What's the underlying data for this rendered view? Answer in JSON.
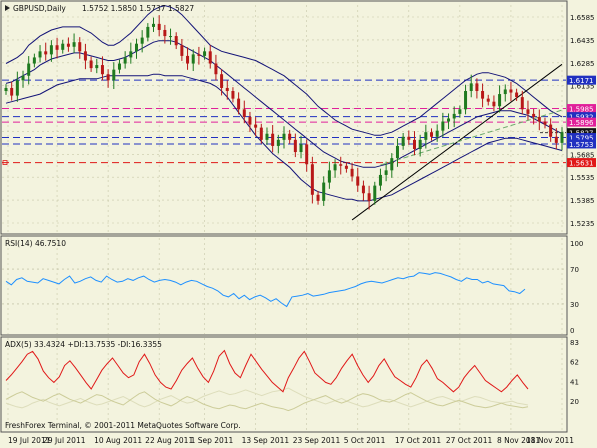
{
  "main_header": {
    "symbol": "GBPUSD,Daily",
    "ohlc": "1.5752 1.5850 1.5737 1.5827"
  },
  "rsi_header": "RSI(14) 46.7510",
  "adx_header": "ADX(5) 33.4324 +DI:13.7535 -DI:16.3355",
  "footer": "FreshForex Terminal, © 2001-2011 MetaQuotes Software Corp.",
  "colors": {
    "background": "#f3f3de",
    "bull_candle": "#1f7a1f",
    "bear_candle": "#b81818",
    "bollinger": "#141478",
    "blue_level": "#2030c0",
    "red_level": "#e01818",
    "magenta_level": "#e0209a",
    "trendline": "#000000",
    "rsi_line": "#1e90ff",
    "adx_line": "#e01818",
    "di_plus": "#cccc99",
    "di_minus": "#ddddbb"
  },
  "chart_data": [
    {
      "type": "candlestick",
      "title": "GBPUSD,Daily",
      "ylim": [
        1.5235,
        1.6585
      ],
      "y_ticks": [
        "1.6585",
        "1.6435",
        "1.6285",
        "1.6135",
        "1.5985",
        "1.5835",
        "1.5685",
        "1.5535",
        "1.5385",
        "1.5235"
      ],
      "x_labels": [
        "19 Jul 2011",
        "29 Jul 2011",
        "10 Aug 2011",
        "22 Aug 2011",
        "1 Sep 2011",
        "13 Sep 2011",
        "23 Sep 2011",
        "5 Oct 2011",
        "17 Oct 2011",
        "27 Oct 2011",
        "8 Nov 2011",
        "18 Nov 2011"
      ],
      "levels": [
        {
          "price": 1.6171,
          "label": "1.6171",
          "color": "blue"
        },
        {
          "price": 1.5985,
          "label": "1.5985",
          "color": "magenta"
        },
        {
          "price": 1.5932,
          "label": "1.5932",
          "color": "blue"
        },
        {
          "price": 1.5896,
          "label": "1.5896",
          "color": "magenta"
        },
        {
          "price": 1.5827,
          "label": "1.5827",
          "color": "black"
        },
        {
          "price": 1.5795,
          "label": "1.5795",
          "color": "blue"
        },
        {
          "price": 1.5753,
          "label": "1.5753",
          "color": "blue"
        },
        {
          "price": 1.5631,
          "label": "1.5631",
          "color": "red"
        }
      ],
      "close": [
        1.612,
        1.607,
        1.617,
        1.62,
        1.628,
        1.632,
        1.636,
        1.634,
        1.64,
        1.637,
        1.641,
        1.639,
        1.642,
        1.636,
        1.63,
        1.625,
        1.627,
        1.621,
        1.617,
        1.624,
        1.628,
        1.632,
        1.636,
        1.641,
        1.645,
        1.652,
        1.654,
        1.65,
        1.646,
        1.646,
        1.64,
        1.633,
        1.628,
        1.634,
        1.633,
        1.636,
        1.628,
        1.621,
        1.612,
        1.61,
        1.605,
        1.598,
        1.593,
        1.588,
        1.586,
        1.578,
        1.582,
        1.574,
        1.578,
        1.582,
        1.578,
        1.57,
        1.575,
        1.562,
        1.542,
        1.538,
        1.55,
        1.558,
        1.562,
        1.561,
        1.559,
        1.554,
        1.548,
        1.543,
        1.538,
        1.548,
        1.555,
        1.558,
        1.566,
        1.574,
        1.58,
        1.578,
        1.572,
        1.578,
        1.583,
        1.58,
        1.584,
        1.59,
        1.592,
        1.595,
        1.598,
        1.61,
        1.615,
        1.61,
        1.605,
        1.603,
        1.6,
        1.608,
        1.611,
        1.609,
        1.606,
        1.598,
        1.595,
        1.593,
        1.59,
        1.588,
        1.58,
        1.576,
        1.583
      ],
      "bollinger_upper": [
        1.628,
        1.63,
        1.632,
        1.635,
        1.64,
        1.643,
        1.646,
        1.648,
        1.65,
        1.651,
        1.652,
        1.652,
        1.652,
        1.652,
        1.65,
        1.648,
        1.645,
        1.642,
        1.64,
        1.64,
        1.642,
        1.645,
        1.648,
        1.652,
        1.656,
        1.66,
        1.663,
        1.665,
        1.666,
        1.665,
        1.663,
        1.66,
        1.656,
        1.652,
        1.648,
        1.644,
        1.64,
        1.638,
        1.636,
        1.635,
        1.634,
        1.633,
        1.632,
        1.631,
        1.63,
        1.628,
        1.626,
        1.624,
        1.622,
        1.62,
        1.617,
        1.614,
        1.611,
        1.608,
        1.604,
        1.6,
        1.597,
        1.594,
        1.591,
        1.589,
        1.587,
        1.585,
        1.584,
        1.583,
        1.582,
        1.581,
        1.581,
        1.582,
        1.583,
        1.585,
        1.587,
        1.589,
        1.591,
        1.593,
        1.596,
        1.599,
        1.602,
        1.605,
        1.608,
        1.611,
        1.614,
        1.617,
        1.619,
        1.621,
        1.622,
        1.622,
        1.621,
        1.62,
        1.619,
        1.617,
        1.615,
        1.612,
        1.609,
        1.606,
        1.603,
        1.6,
        1.597,
        1.595,
        1.593
      ],
      "bollinger_middle": [
        1.615,
        1.616,
        1.618,
        1.62,
        1.622,
        1.624,
        1.627,
        1.629,
        1.631,
        1.632,
        1.633,
        1.634,
        1.635,
        1.635,
        1.634,
        1.633,
        1.632,
        1.631,
        1.63,
        1.63,
        1.631,
        1.632,
        1.634,
        1.636,
        1.638,
        1.64,
        1.642,
        1.643,
        1.643,
        1.643,
        1.642,
        1.64,
        1.638,
        1.636,
        1.634,
        1.632,
        1.63,
        1.627,
        1.624,
        1.621,
        1.618,
        1.615,
        1.612,
        1.609,
        1.606,
        1.603,
        1.6,
        1.597,
        1.594,
        1.591,
        1.588,
        1.585,
        1.582,
        1.579,
        1.576,
        1.573,
        1.57,
        1.568,
        1.566,
        1.564,
        1.563,
        1.562,
        1.561,
        1.56,
        1.56,
        1.56,
        1.561,
        1.562,
        1.563,
        1.565,
        1.567,
        1.569,
        1.571,
        1.573,
        1.575,
        1.577,
        1.579,
        1.581,
        1.583,
        1.585,
        1.587,
        1.589,
        1.591,
        1.593,
        1.594,
        1.595,
        1.596,
        1.597,
        1.597,
        1.597,
        1.596,
        1.595,
        1.594,
        1.592,
        1.59,
        1.588,
        1.586,
        1.584,
        1.582
      ],
      "bollinger_lower": [
        1.602,
        1.603,
        1.604,
        1.605,
        1.606,
        1.607,
        1.608,
        1.61,
        1.612,
        1.614,
        1.615,
        1.616,
        1.617,
        1.618,
        1.618,
        1.618,
        1.618,
        1.619,
        1.62,
        1.62,
        1.62,
        1.62,
        1.62,
        1.62,
        1.62,
        1.62,
        1.621,
        1.621,
        1.62,
        1.62,
        1.62,
        1.62,
        1.619,
        1.618,
        1.617,
        1.616,
        1.615,
        1.613,
        1.61,
        1.606,
        1.601,
        1.596,
        1.591,
        1.586,
        1.581,
        1.577,
        1.573,
        1.569,
        1.566,
        1.563,
        1.56,
        1.556,
        1.552,
        1.549,
        1.546,
        1.544,
        1.543,
        1.542,
        1.541,
        1.54,
        1.539,
        1.539,
        1.538,
        1.538,
        1.538,
        1.539,
        1.54,
        1.541,
        1.542,
        1.544,
        1.546,
        1.548,
        1.55,
        1.552,
        1.554,
        1.556,
        1.558,
        1.56,
        1.562,
        1.564,
        1.566,
        1.568,
        1.57,
        1.572,
        1.574,
        1.576,
        1.577,
        1.578,
        1.579,
        1.579,
        1.579,
        1.578,
        1.577,
        1.576,
        1.575,
        1.574,
        1.573,
        1.572,
        1.571
      ],
      "trendline": {
        "from": {
          "bar": 61,
          "price": 1.5255
        },
        "to": {
          "bar": 98,
          "price": 1.6275
        }
      },
      "channel_line": {
        "from": {
          "bar": 66,
          "price": 1.5615
        },
        "to": {
          "bar": 98,
          "price": 1.5975
        }
      }
    },
    {
      "type": "line",
      "title": "RSI(14) 46.7510",
      "ylim": [
        0,
        100
      ],
      "y_ticks": [
        "100",
        "70",
        "30",
        "0"
      ],
      "levels": [
        30,
        70
      ],
      "series": [
        {
          "values": [
            56,
            52,
            58,
            60,
            56,
            55,
            54,
            59,
            57,
            55,
            53,
            58,
            62,
            54,
            56,
            59,
            61,
            57,
            55,
            62,
            58,
            55,
            56,
            59,
            57,
            60,
            62,
            58,
            55,
            57,
            58,
            57,
            55,
            52,
            55,
            57,
            56,
            53,
            50,
            48,
            45,
            40,
            38,
            42,
            36,
            40,
            35,
            38,
            40,
            37,
            33,
            36,
            31,
            27,
            38,
            39,
            40,
            42,
            39,
            40,
            41,
            43,
            44,
            45,
            46,
            48,
            50,
            53,
            55,
            56,
            55,
            54,
            56,
            58,
            60,
            59,
            61,
            62,
            66,
            65,
            64,
            66,
            65,
            63,
            61,
            58,
            56,
            60,
            58,
            58,
            54,
            56,
            53,
            52,
            51,
            45,
            44,
            42,
            47
          ]
        }
      ]
    },
    {
      "type": "line",
      "title": "ADX(5) 33.4324 +DI:13.7535 -DI:16.3355",
      "ylim": [
        0,
        83
      ],
      "y_ticks": [
        "83",
        "62",
        "41",
        "20"
      ],
      "series": [
        {
          "values": [
            42,
            48,
            55,
            62,
            70,
            73,
            65,
            52,
            45,
            40,
            46,
            58,
            63,
            56,
            48,
            40,
            33,
            43,
            53,
            60,
            66,
            58,
            50,
            45,
            48,
            62,
            70,
            60,
            48,
            40,
            35,
            33,
            42,
            53,
            60,
            66,
            55,
            46,
            40,
            52,
            68,
            74,
            60,
            50,
            45,
            58,
            70,
            62,
            54,
            47,
            40,
            35,
            30,
            45,
            55,
            66,
            73,
            62,
            50,
            45,
            40,
            38,
            45,
            55,
            63,
            70,
            58,
            48,
            40,
            47,
            58,
            65,
            55,
            46,
            42,
            38,
            35,
            45,
            58,
            64,
            55,
            44,
            40,
            35,
            30,
            35,
            45,
            52,
            58,
            50,
            42,
            38,
            34,
            30,
            35,
            42,
            48,
            40,
            33
          ]
        },
        {
          "values": [
            22,
            25,
            28,
            30,
            27,
            24,
            22,
            20,
            23,
            26,
            28,
            25,
            22,
            20,
            18,
            21,
            24,
            27,
            26,
            23,
            20,
            18,
            16,
            20,
            24,
            28,
            30,
            26,
            22,
            19,
            17,
            15,
            18,
            22,
            25,
            23,
            20,
            17,
            15,
            13,
            12,
            14,
            16,
            15,
            13,
            12,
            14,
            16,
            18,
            16,
            14,
            13,
            12,
            10,
            12,
            15,
            18,
            20,
            22,
            24,
            26,
            23,
            20,
            18,
            20,
            23,
            26,
            28,
            27,
            25,
            22,
            20,
            19,
            21,
            24,
            27,
            29,
            26,
            23,
            20,
            18,
            16,
            15,
            17,
            19,
            21,
            19,
            17,
            15,
            14,
            13,
            14,
            16,
            18,
            16,
            15,
            14,
            13,
            14
          ]
        },
        {
          "values": [
            18,
            16,
            14,
            13,
            15,
            18,
            20,
            22,
            19,
            17,
            15,
            17,
            19,
            21,
            23,
            20,
            18,
            16,
            17,
            19,
            21,
            23,
            25,
            22,
            19,
            16,
            14,
            16,
            19,
            22,
            24,
            26,
            23,
            20,
            18,
            19,
            22,
            25,
            27,
            29,
            31,
            29,
            27,
            28,
            30,
            32,
            30,
            28,
            26,
            28,
            30,
            31,
            32,
            34,
            31,
            28,
            25,
            23,
            21,
            19,
            17,
            19,
            21,
            23,
            20,
            18,
            16,
            14,
            15,
            17,
            19,
            21,
            22,
            20,
            18,
            16,
            14,
            16,
            18,
            20,
            22,
            24,
            25,
            23,
            21,
            19,
            21,
            23,
            25,
            24,
            22,
            20,
            19,
            18,
            19,
            20,
            18,
            17,
            16
          ]
        }
      ]
    }
  ]
}
